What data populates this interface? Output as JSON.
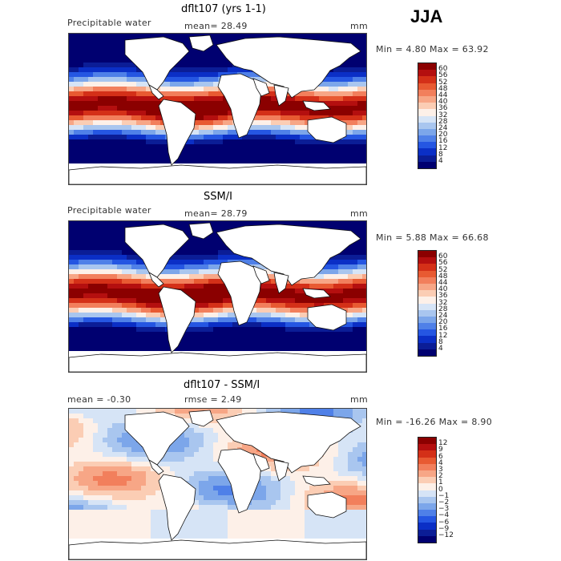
{
  "season": "JJA",
  "panels": [
    {
      "title": "dflt107 (yrs 1-1)",
      "left": "Precipitable water",
      "center": "mean=   28.49",
      "right": "mm",
      "minmax": "Min =    4.80 Max =   63.92",
      "type": "model",
      "colorbar": {
        "labels": [
          "60",
          "56",
          "52",
          "48",
          "44",
          "40",
          "36",
          "32",
          "28",
          "24",
          "20",
          "16",
          "12",
          "8",
          "4"
        ],
        "colors": [
          "#8b0000",
          "#b40f0f",
          "#d43018",
          "#e85a32",
          "#f27f5c",
          "#f7a686",
          "#fbcdb4",
          "#fdf0e8",
          "#d6e4f6",
          "#a9c6ef",
          "#7ca6ea",
          "#4f80e8",
          "#2556e2",
          "#0b2fc6",
          "#0b1d96",
          "#000070"
        ]
      }
    },
    {
      "title": "SSM/I",
      "left": "Precipitable water",
      "center": "mean=   28.79",
      "right": "mm",
      "minmax": "Min =    5.88 Max =   66.68",
      "type": "obs",
      "colorbar": {
        "labels": [
          "60",
          "56",
          "52",
          "48",
          "44",
          "40",
          "36",
          "32",
          "28",
          "24",
          "20",
          "16",
          "12",
          "8",
          "4"
        ],
        "colors": [
          "#8b0000",
          "#b40f0f",
          "#d43018",
          "#e85a32",
          "#f27f5c",
          "#f7a686",
          "#fbcdb4",
          "#fdf0e8",
          "#d6e4f6",
          "#a9c6ef",
          "#7ca6ea",
          "#4f80e8",
          "#2556e2",
          "#0b2fc6",
          "#0b1d96",
          "#000070"
        ]
      }
    },
    {
      "title": "dflt107 - SSM/I",
      "left": "mean =   -0.30",
      "center": "rmse =    2.49",
      "right": "mm",
      "minmax": "Min =  -16.26 Max =    8.90",
      "type": "diff",
      "colorbar": {
        "labels": [
          "12",
          "9",
          "6",
          "4",
          "3",
          "2",
          "1",
          "0",
          "−1",
          "−2",
          "−3",
          "−4",
          "−6",
          "−9",
          "−12"
        ],
        "colors": [
          "#8b0000",
          "#b40f0f",
          "#d43018",
          "#e85a32",
          "#f27f5c",
          "#f7a686",
          "#fbcdb4",
          "#fdf0e8",
          "#d6e4f6",
          "#a9c6ef",
          "#7ca6ea",
          "#4f80e8",
          "#2556e2",
          "#0b2fc6",
          "#0b1d96",
          "#000070"
        ]
      }
    }
  ]
}
